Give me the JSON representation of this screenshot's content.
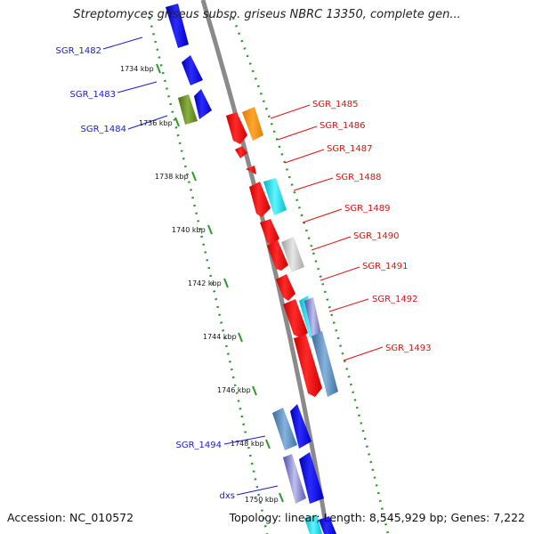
{
  "title": "Streptomyces griseus subsp. griseus NBRC 13350, complete gen...",
  "footer": {
    "accession": "Accession: NC_010572",
    "stats": "Topology: linear; Length: 8,545,929 bp; Genes: 7,222"
  },
  "colors": {
    "left_label": "#1a1acc",
    "right_label": "#dd1111",
    "backbone": "#8a8a8a",
    "guide_dots": "#2a9a2a",
    "kbp_tick": "#2a9a2a"
  },
  "kbp_ticks": [
    "1734 kbp",
    "1736 kbp",
    "1738 kbp",
    "1740 kbp",
    "1742 kbp",
    "1744 kbp",
    "1746 kbp",
    "1748 kbp",
    "1750 kbp"
  ],
  "genes_left": [
    "SGR_1482",
    "SGR_1483",
    "SGR_1484",
    "SGR_1494",
    "dxs"
  ],
  "genes_right": [
    "SGR_1485",
    "SGR_1486",
    "SGR_1487",
    "SGR_1488",
    "SGR_1489",
    "SGR_1490",
    "SGR_1491",
    "SGR_1492",
    "SGR_1493"
  ]
}
